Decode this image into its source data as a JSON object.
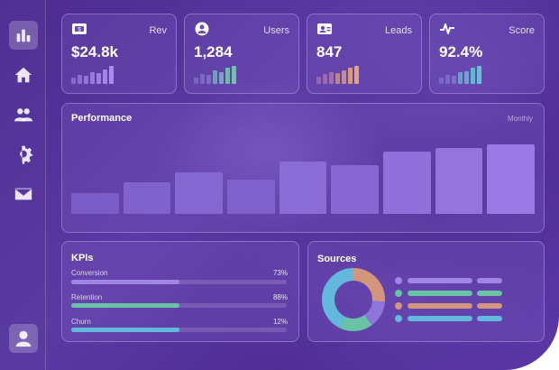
{
  "stats": [
    {
      "label": "Rev",
      "value": "$24.8k",
      "icon": "dollar-bill-icon",
      "bar_color": "#a98bef",
      "bars": [
        0.3,
        0.45,
        0.4,
        0.6,
        0.55,
        0.75,
        0.9
      ]
    },
    {
      "label": "Users",
      "value": "1,284",
      "icon": "users-icon",
      "bar_colors": [
        "#8a7fd6",
        "#7bb6c9",
        "#6ec4a6"
      ],
      "bars": [
        0.3,
        0.5,
        0.45,
        0.7,
        0.6,
        0.8,
        0.9
      ]
    },
    {
      "label": "Leads",
      "value": "847",
      "icon": "id-card-icon",
      "bar_colors": [
        "#c07fb4",
        "#d59a86",
        "#e0a27a"
      ],
      "bars": [
        0.35,
        0.5,
        0.6,
        0.55,
        0.7,
        0.8,
        0.9
      ]
    },
    {
      "label": "Score",
      "value": "92.4%",
      "icon": "pulse-icon",
      "bar_colors": [
        "#8a7fd6",
        "#6fb6d6",
        "#5fc4d2"
      ],
      "bars": [
        0.3,
        0.45,
        0.4,
        0.6,
        0.65,
        0.8,
        0.9
      ]
    }
  ],
  "performance": {
    "title": "Performance",
    "period": "Monthly"
  },
  "chart_data": {
    "type": "bar",
    "values": [
      24,
      36,
      48,
      40,
      60,
      56,
      72,
      76,
      80
    ],
    "ylim": [
      0,
      100
    ],
    "colors": [
      "#7a5dc7",
      "#7f62cc",
      "#8467d1",
      "#7f62cc",
      "#8a6cd6",
      "#8768d3",
      "#9170db",
      "#9574de",
      "#9a79e4"
    ]
  },
  "kpis": {
    "title": "KPIs",
    "items": [
      {
        "label": "Conversion",
        "value": "73%",
        "fill": 0.5,
        "color": "#9f86e6"
      },
      {
        "label": "Retention",
        "value": "88%",
        "fill": 0.5,
        "color": "#67c3a3"
      },
      {
        "label": "Churn",
        "value": "12%",
        "fill": 0.5,
        "color": "#62b9dd"
      }
    ]
  },
  "sources": {
    "title": "Sources",
    "segments": [
      {
        "value": 0.26,
        "color": "#d3967c"
      },
      {
        "value": 0.14,
        "color": "#8e74dc"
      },
      {
        "value": 0.17,
        "color": "#67c3a3"
      },
      {
        "value": 0.43,
        "color": "#62b9dd"
      }
    ],
    "legend_colors": [
      "#9f86e6",
      "#67c3a3",
      "#d3967c",
      "#62b9dd"
    ]
  }
}
